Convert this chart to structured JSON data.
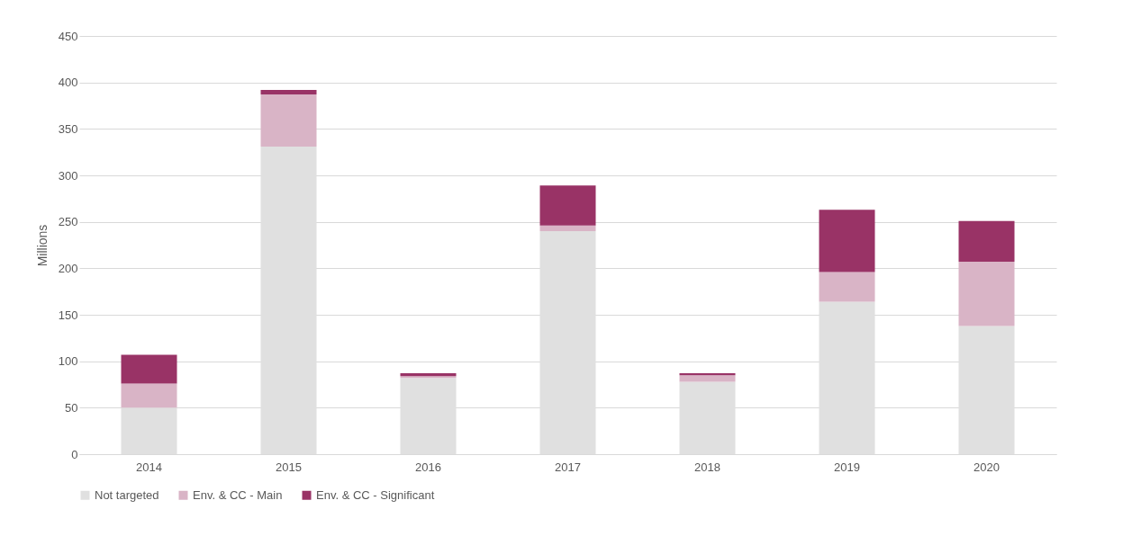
{
  "chart_data": {
    "type": "bar",
    "stacked": true,
    "ylabel": "Millions",
    "categories": [
      "2014",
      "2015",
      "2016",
      "2017",
      "2018",
      "2019",
      "2020"
    ],
    "series": [
      {
        "name": "Not targeted",
        "color": "#e0e0e0",
        "values": [
          50,
          331,
          82,
          240,
          78,
          164,
          138
        ]
      },
      {
        "name": "Env. & CC - Main",
        "color": "#d9b4c6",
        "values": [
          26,
          56,
          2,
          6,
          7,
          32,
          69
        ]
      },
      {
        "name": "Env. & CC - Significant",
        "color": "#993366",
        "values": [
          31,
          5,
          3,
          43,
          2,
          67,
          44
        ]
      }
    ],
    "ylim": [
      0,
      450
    ],
    "yticks": [
      0,
      50,
      100,
      150,
      200,
      250,
      300,
      350,
      400,
      450
    ],
    "grid": "y",
    "legend": "bottom"
  }
}
